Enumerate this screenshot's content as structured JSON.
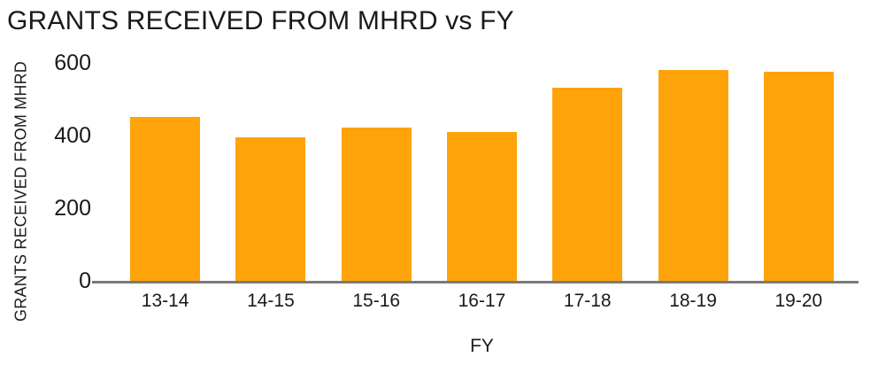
{
  "colors": {
    "bar": "#FFA30A",
    "axis_line": "#7a7a7a",
    "text": "#1a1a1a",
    "background": "#ffffff"
  },
  "chart_data": {
    "type": "bar",
    "title": "GRANTS RECEIVED FROM MHRD vs FY",
    "xlabel": "FY",
    "ylabel": "GRANTS RECEIVED FROM MHRD",
    "categories": [
      "13-14",
      "14-15",
      "15-16",
      "16-17",
      "17-18",
      "18-19",
      "19-20"
    ],
    "values": [
      450,
      395,
      420,
      410,
      530,
      580,
      575
    ],
    "ylim": [
      0,
      600
    ],
    "yticks": [
      0,
      200,
      400,
      600
    ],
    "grid": false,
    "legend": false,
    "bar_color": "#FFA30A"
  }
}
